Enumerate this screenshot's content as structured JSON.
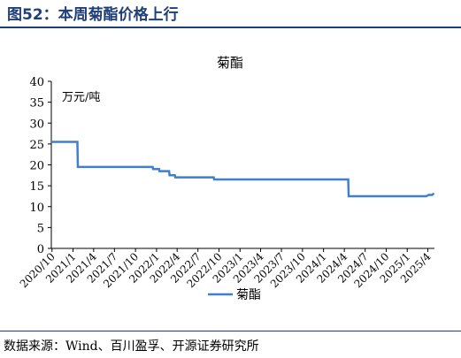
{
  "figure": {
    "title": "图52：本周菊酯价格上行",
    "source": "数据来源：Wind、百川盈孚、开源证券研究所"
  },
  "chart_data": {
    "type": "line",
    "title": "菊酯",
    "unit_label": "万元/吨",
    "xlabel": "",
    "ylabel": "",
    "ylim": [
      0,
      40
    ],
    "yticks": [
      0,
      5,
      10,
      15,
      20,
      25,
      30,
      35,
      40
    ],
    "xlim": [
      "2020/9/28",
      "2025/4/30"
    ],
    "xticks": [
      "2020/10",
      "2021/1",
      "2021/4",
      "2021/7",
      "2021/10",
      "2022/1",
      "2022/4",
      "2022/7",
      "2022/10",
      "2023/1",
      "2023/4",
      "2023/7",
      "2023/10",
      "2024/1",
      "2024/4",
      "2024/7",
      "2024/10",
      "2025/1",
      "2025/4"
    ],
    "grid": false,
    "legend_position": "bottom-center",
    "series": [
      {
        "name": "菊酯",
        "color": "#3f7fce",
        "x": [
          "2020/9/28",
          "2021/1/20",
          "2021/1/22",
          "2021/12/15",
          "2021/12/17",
          "2022/1/12",
          "2022/1/14",
          "2022/2/25",
          "2022/2/27",
          "2022/3/22",
          "2022/3/24",
          "2022/9/8",
          "2022/9/10",
          "2024/4/18",
          "2024/4/20",
          "2025/3/25",
          "2025/4/5",
          "2025/4/20",
          "2025/4/28"
        ],
        "values": [
          25.5,
          25.5,
          19.5,
          19.5,
          19.0,
          19.0,
          18.5,
          18.5,
          17.5,
          17.5,
          17.0,
          17.0,
          16.5,
          16.5,
          12.5,
          12.5,
          12.8,
          12.8,
          13.2
        ]
      }
    ]
  }
}
